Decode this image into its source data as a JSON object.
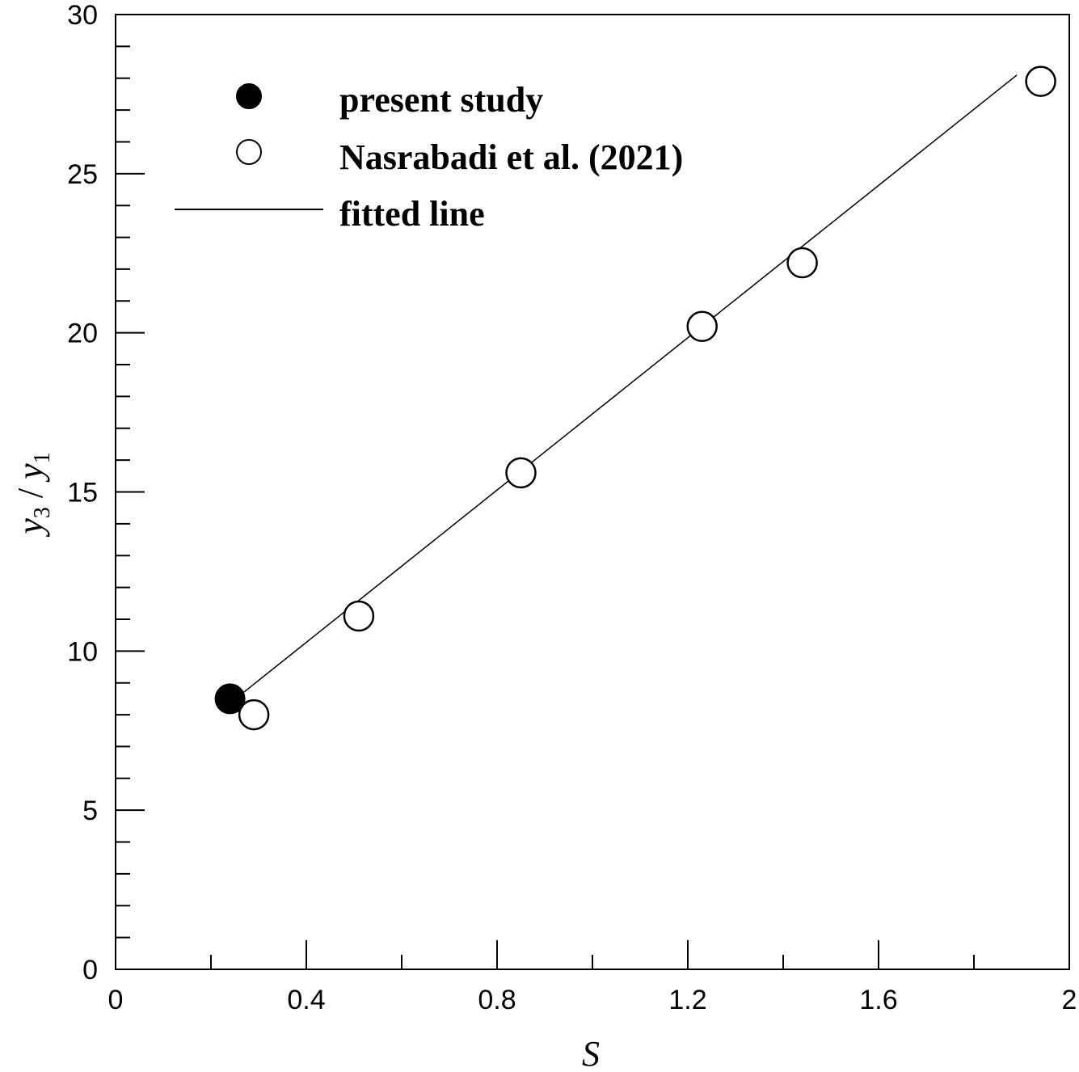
{
  "chart_data": {
    "type": "scatter",
    "xlabel": "S",
    "ylabel": "y3 / y1",
    "xlim": [
      0,
      2
    ],
    "ylim": [
      0,
      30
    ],
    "x_ticks": [
      {
        "value": 0,
        "label": "0"
      },
      {
        "value": 0.4,
        "label": "0.4"
      },
      {
        "value": 0.8,
        "label": "0.8"
      },
      {
        "value": 1.2,
        "label": "1.2"
      },
      {
        "value": 1.6,
        "label": "1.6"
      },
      {
        "value": 2,
        "label": "2"
      }
    ],
    "y_ticks": [
      {
        "value": 0,
        "label": "0"
      },
      {
        "value": 5,
        "label": "5"
      },
      {
        "value": 10,
        "label": "10"
      },
      {
        "value": 15,
        "label": "15"
      },
      {
        "value": 20,
        "label": "20"
      },
      {
        "value": 25,
        "label": "25"
      },
      {
        "value": 30,
        "label": "30"
      }
    ],
    "grid": false,
    "legend_position": "top-left",
    "series": [
      {
        "name": "present study",
        "marker": "filled-circle",
        "color": "#000000",
        "points": [
          {
            "x": 0.24,
            "y": 8.5
          }
        ]
      },
      {
        "name": "Nasrabadi et al. (2021)",
        "marker": "open-circle",
        "color": "#000000",
        "points": [
          {
            "x": 0.29,
            "y": 8.0
          },
          {
            "x": 0.51,
            "y": 11.1
          },
          {
            "x": 0.85,
            "y": 15.6
          },
          {
            "x": 1.23,
            "y": 20.2
          },
          {
            "x": 1.44,
            "y": 22.2
          },
          {
            "x": 1.94,
            "y": 27.9
          }
        ]
      },
      {
        "name": "fitted line",
        "marker": "line",
        "color": "#000000",
        "points": [
          {
            "x": 0.26,
            "y": 8.6
          },
          {
            "x": 1.89,
            "y": 28.1
          }
        ]
      }
    ]
  }
}
